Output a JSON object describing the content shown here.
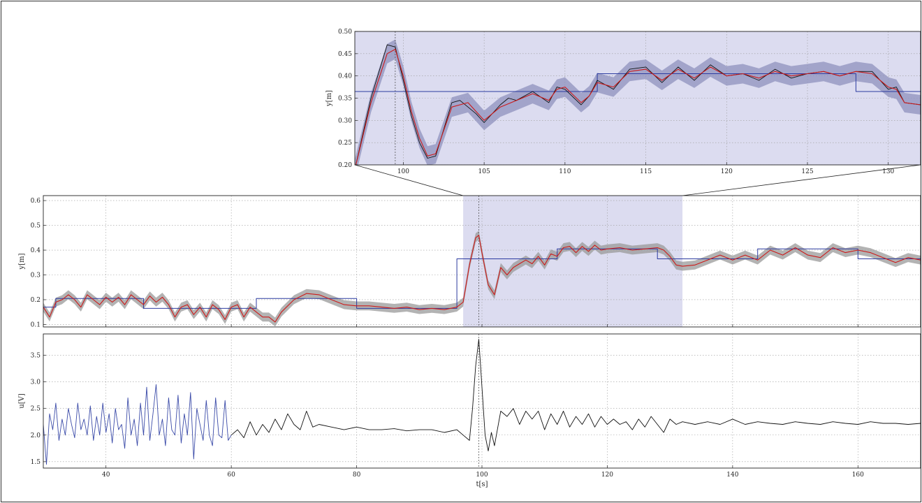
{
  "colors": {
    "reference": "#2c3ba0",
    "measurement": "#111111",
    "estimate": "#cc1a1a",
    "uncertainty_band": "#9a9a9a",
    "uncertainty_band_zoom": "#8f92bd",
    "highlight": "#dcdcf0",
    "input_excitation": "#3a4aa8",
    "input_control": "#111111"
  },
  "chart_data": [
    {
      "id": "zoom",
      "type": "line",
      "ylabel": "y[m]",
      "xlim": [
        97,
        132
      ],
      "ylim": [
        0.2,
        0.5
      ],
      "x_ticks": [
        100,
        105,
        110,
        115,
        120,
        125,
        130
      ],
      "y_ticks": [
        0.2,
        0.25,
        0.3,
        0.35,
        0.4,
        0.45,
        0.5
      ],
      "y_tick_labels": [
        "0.20",
        "0.25",
        "0.30",
        "0.35",
        "0.40",
        "0.45",
        "0.50"
      ],
      "grid": true,
      "shaded_region": [
        97,
        132
      ],
      "vertical_marker": 99.5,
      "series": [
        {
          "role": "reference",
          "step": true,
          "x": [
            97,
            112,
            112,
            128,
            128,
            132
          ],
          "y": [
            0.365,
            0.365,
            0.405,
            0.405,
            0.365,
            0.365
          ]
        },
        {
          "role": "estimate",
          "x": [
            97,
            98,
            99,
            99.5,
            100,
            100.5,
            101,
            101.5,
            102,
            103,
            104,
            104.5,
            105,
            106,
            107,
            108,
            109,
            109.5,
            110,
            111,
            111.5,
            112,
            113,
            114,
            115,
            116,
            117,
            118,
            119,
            120,
            121,
            122,
            123,
            124,
            125,
            126,
            127,
            128,
            129,
            130,
            130.5,
            131,
            132
          ],
          "y": [
            0.19,
            0.34,
            0.45,
            0.46,
            0.4,
            0.32,
            0.26,
            0.22,
            0.225,
            0.33,
            0.34,
            0.32,
            0.3,
            0.33,
            0.345,
            0.36,
            0.345,
            0.37,
            0.375,
            0.34,
            0.355,
            0.385,
            0.375,
            0.41,
            0.415,
            0.39,
            0.415,
            0.395,
            0.42,
            0.4,
            0.405,
            0.395,
            0.41,
            0.4,
            0.405,
            0.41,
            0.4,
            0.41,
            0.405,
            0.375,
            0.37,
            0.34,
            0.335
          ]
        },
        {
          "role": "measurement",
          "x": [
            97,
            98,
            99,
            99.5,
            100,
            100.5,
            101,
            101.5,
            102,
            103,
            103.5,
            104,
            104.5,
            105,
            106,
            106.5,
            107,
            108,
            109,
            109.5,
            110,
            111,
            111.5,
            112,
            113,
            114,
            115,
            116,
            117,
            118,
            119,
            120,
            121,
            122,
            123,
            124,
            125,
            126,
            127,
            128,
            129,
            130,
            130.5,
            131,
            132
          ],
          "y": [
            0.19,
            0.35,
            0.47,
            0.465,
            0.39,
            0.31,
            0.25,
            0.215,
            0.22,
            0.34,
            0.345,
            0.33,
            0.315,
            0.295,
            0.335,
            0.35,
            0.345,
            0.365,
            0.34,
            0.375,
            0.37,
            0.335,
            0.355,
            0.39,
            0.37,
            0.415,
            0.42,
            0.385,
            0.42,
            0.39,
            0.425,
            0.4,
            0.405,
            0.39,
            0.415,
            0.395,
            0.405,
            0.41,
            0.4,
            0.41,
            0.41,
            0.37,
            0.375,
            0.34,
            0.335
          ]
        }
      ]
    },
    {
      "id": "output",
      "type": "line",
      "ylabel": "y[m]",
      "xlim": [
        30,
        170
      ],
      "ylim": [
        0.09,
        0.62
      ],
      "x_ticks": [
        40,
        60,
        80,
        100,
        120,
        140,
        160
      ],
      "y_ticks": [
        0.1,
        0.2,
        0.3,
        0.4,
        0.5,
        0.6
      ],
      "y_tick_labels": [
        "0.1",
        "0.2",
        "0.3",
        "0.4",
        "0.5",
        "0.6"
      ],
      "grid": true,
      "shaded_region": [
        97,
        132
      ],
      "vertical_marker": 99.5,
      "series": [
        {
          "role": "reference",
          "step": true,
          "x": [
            30,
            32,
            32,
            40,
            40,
            46,
            46,
            52,
            52,
            64,
            64,
            74,
            74,
            80,
            80,
            96,
            96,
            112,
            112,
            128,
            128,
            144,
            144,
            160,
            160,
            170
          ],
          "y": [
            0.17,
            0.17,
            0.205,
            0.205,
            0.205,
            0.205,
            0.165,
            0.165,
            0.165,
            0.165,
            0.205,
            0.205,
            0.205,
            0.205,
            0.165,
            0.165,
            0.365,
            0.365,
            0.405,
            0.405,
            0.365,
            0.365,
            0.405,
            0.405,
            0.365,
            0.365
          ]
        },
        {
          "role": "estimate",
          "x": [
            30,
            31,
            32,
            33,
            34,
            35,
            36,
            37,
            38,
            39,
            40,
            41,
            42,
            43,
            44,
            45,
            46,
            47,
            48,
            49,
            50,
            51,
            52,
            53,
            54,
            55,
            56,
            57,
            58,
            59,
            60,
            61,
            62,
            63,
            64,
            65,
            66,
            67,
            68,
            70,
            72,
            74,
            76,
            78,
            80,
            82,
            84,
            86,
            88,
            90,
            92,
            94,
            96,
            97,
            98,
            99,
            99.5,
            100,
            101,
            102,
            103,
            104,
            105,
            106,
            107,
            108,
            109,
            110,
            111,
            112,
            113,
            114,
            115,
            116,
            117,
            118,
            119,
            120,
            122,
            124,
            126,
            128,
            129,
            130,
            131,
            132,
            134,
            136,
            138,
            140,
            142,
            144,
            146,
            148,
            150,
            152,
            154,
            156,
            158,
            160,
            162,
            164,
            166,
            168,
            170
          ],
          "y": [
            0.17,
            0.13,
            0.19,
            0.2,
            0.22,
            0.2,
            0.17,
            0.22,
            0.2,
            0.18,
            0.21,
            0.19,
            0.21,
            0.18,
            0.22,
            0.2,
            0.18,
            0.215,
            0.19,
            0.21,
            0.18,
            0.13,
            0.17,
            0.18,
            0.14,
            0.17,
            0.13,
            0.18,
            0.16,
            0.12,
            0.17,
            0.18,
            0.13,
            0.17,
            0.15,
            0.13,
            0.13,
            0.11,
            0.15,
            0.2,
            0.225,
            0.22,
            0.2,
            0.18,
            0.175,
            0.175,
            0.17,
            0.165,
            0.17,
            0.16,
            0.165,
            0.16,
            0.17,
            0.19,
            0.34,
            0.45,
            0.46,
            0.39,
            0.26,
            0.22,
            0.33,
            0.3,
            0.33,
            0.345,
            0.36,
            0.345,
            0.375,
            0.34,
            0.385,
            0.375,
            0.41,
            0.415,
            0.39,
            0.415,
            0.395,
            0.42,
            0.4,
            0.405,
            0.41,
            0.4,
            0.405,
            0.41,
            0.4,
            0.375,
            0.34,
            0.335,
            0.34,
            0.36,
            0.38,
            0.36,
            0.38,
            0.36,
            0.4,
            0.38,
            0.41,
            0.38,
            0.37,
            0.41,
            0.39,
            0.4,
            0.39,
            0.37,
            0.35,
            0.37,
            0.36
          ]
        }
      ]
    },
    {
      "id": "input",
      "type": "line",
      "ylabel": "u[V]",
      "xlabel": "t[s]",
      "xlim": [
        30,
        170
      ],
      "ylim": [
        1.38,
        3.9
      ],
      "x_ticks": [
        40,
        60,
        80,
        100,
        120,
        140,
        160
      ],
      "y_ticks": [
        1.5,
        2.0,
        2.5,
        3.0,
        3.5
      ],
      "y_tick_labels": [
        "1.5",
        "2.0",
        "2.5",
        "3.0",
        "3.5"
      ],
      "grid": true,
      "vertical_marker": 99.5,
      "series": [
        {
          "role": "input_excitation",
          "x": [
            30,
            30.5,
            31,
            31.5,
            32,
            32.5,
            33,
            33.5,
            34,
            34.5,
            35,
            35.5,
            36,
            36.5,
            37,
            37.5,
            38,
            38.5,
            39,
            39.5,
            40,
            40.5,
            41,
            41.5,
            42,
            42.5,
            43,
            43.5,
            44,
            44.5,
            45,
            45.5,
            46,
            46.5,
            47,
            47.5,
            48,
            48.5,
            49,
            49.5,
            50,
            50.5,
            51,
            51.5,
            52,
            52.5,
            53,
            53.5,
            54,
            54.5,
            55,
            55.5,
            56,
            56.5,
            57,
            57.5,
            58,
            58.5,
            59,
            59.5,
            60
          ],
          "y": [
            2.2,
            1.45,
            2.4,
            2.1,
            2.6,
            1.9,
            2.3,
            2.0,
            2.5,
            2.2,
            1.95,
            2.6,
            2.1,
            2.3,
            2.0,
            2.55,
            1.9,
            2.35,
            2.0,
            2.6,
            2.05,
            2.4,
            1.85,
            2.5,
            2.1,
            2.2,
            1.75,
            2.7,
            2.0,
            2.3,
            1.8,
            2.6,
            2.0,
            2.9,
            1.9,
            2.4,
            2.95,
            2.0,
            2.3,
            1.8,
            2.7,
            2.1,
            2.0,
            2.75,
            1.85,
            2.4,
            2.0,
            2.8,
            1.55,
            2.5,
            2.2,
            1.9,
            2.65,
            2.0,
            1.8,
            2.7,
            2.0,
            1.95,
            2.65,
            1.9,
            2.0
          ]
        },
        {
          "role": "input_control",
          "x": [
            60,
            61,
            62,
            63,
            64,
            65,
            66,
            67,
            68,
            69,
            70,
            71,
            72,
            73,
            74,
            76,
            78,
            80,
            82,
            84,
            86,
            88,
            90,
            92,
            94,
            96,
            97,
            98,
            98.5,
            99,
            99.5,
            100,
            100.5,
            101,
            101.5,
            102,
            103,
            104,
            105,
            106,
            107,
            108,
            109,
            110,
            111,
            112,
            113,
            114,
            115,
            116,
            117,
            118,
            119,
            120,
            121,
            122,
            123,
            124,
            125,
            126,
            127,
            128,
            129,
            130,
            131,
            132,
            134,
            136,
            138,
            140,
            142,
            144,
            146,
            148,
            150,
            152,
            154,
            156,
            158,
            160,
            162,
            164,
            166,
            168,
            170
          ],
          "y": [
            2.0,
            2.1,
            1.95,
            2.25,
            2.0,
            2.2,
            2.05,
            2.3,
            2.1,
            2.4,
            2.2,
            2.1,
            2.45,
            2.15,
            2.2,
            2.15,
            2.1,
            2.15,
            2.1,
            2.1,
            2.12,
            2.08,
            2.1,
            2.1,
            2.05,
            2.1,
            2.0,
            1.9,
            2.5,
            3.3,
            3.8,
            2.9,
            2.0,
            1.7,
            2.05,
            1.8,
            2.45,
            2.35,
            2.5,
            2.2,
            2.45,
            2.3,
            2.45,
            2.1,
            2.4,
            2.2,
            2.45,
            2.15,
            2.35,
            2.2,
            2.4,
            2.15,
            2.35,
            2.2,
            2.3,
            2.2,
            2.25,
            2.1,
            2.3,
            2.15,
            2.35,
            2.2,
            2.05,
            2.3,
            2.2,
            2.25,
            2.2,
            2.25,
            2.2,
            2.3,
            2.2,
            2.25,
            2.22,
            2.2,
            2.25,
            2.22,
            2.2,
            2.25,
            2.22,
            2.2,
            2.25,
            2.22,
            2.22,
            2.2,
            2.22
          ]
        }
      ]
    }
  ]
}
